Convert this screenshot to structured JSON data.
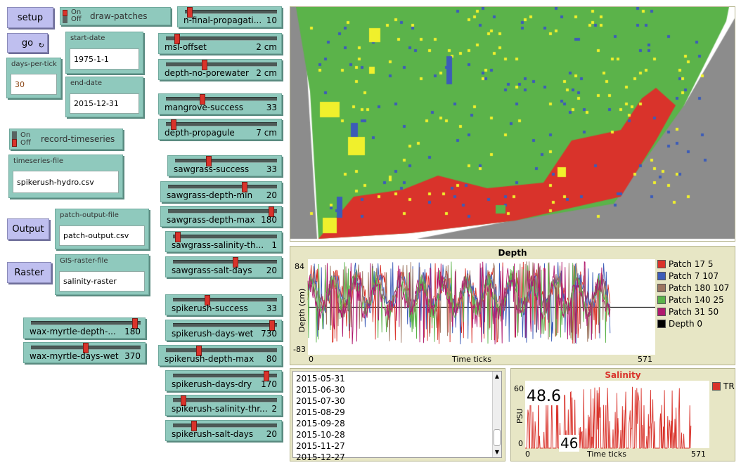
{
  "buttons": {
    "setup": "setup",
    "go": "go",
    "output": "Output",
    "raster": "Raster"
  },
  "icons": {
    "forever": "forever-icon"
  },
  "switches": {
    "on": "On",
    "off": "Off",
    "draw_patches": "draw-patches",
    "record_timeseries": "record-timeseries"
  },
  "inputs": {
    "start_date": {
      "label": "start-date",
      "value": "1975-1-1"
    },
    "days_per_tick": {
      "label": "days-per-tick",
      "value": "30"
    },
    "end_date": {
      "label": "end-date",
      "value": "2015-12-31"
    },
    "timeseries_file": {
      "label": "timeseries-file",
      "value": "spikerush-hydro.csv"
    },
    "patch_output_file": {
      "label": "patch-output-file",
      "value": "patch-output.csv"
    },
    "gis_raster_file": {
      "label": "GIS-raster-file",
      "value": "salinity-raster"
    }
  },
  "sliders": [
    {
      "label": "n-final-propagati...",
      "value": "10",
      "fraction": 0.05
    },
    {
      "label": "msl-offset",
      "value": "2 cm",
      "fraction": 0.1
    },
    {
      "label": "depth-no-porewater",
      "value": "2 cm",
      "fraction": 0.35
    },
    {
      "label": "mangrove-success",
      "value": "33",
      "fraction": 0.33
    },
    {
      "label": "depth-propagule",
      "value": "7 cm",
      "fraction": 0.07
    },
    {
      "label": "sawgrass-success",
      "value": "33",
      "fraction": 0.33
    },
    {
      "label": "sawgrass-depth-min",
      "value": "20",
      "fraction": 0.7
    },
    {
      "label": "sawgrass-depth-max",
      "value": "180",
      "fraction": 0.95
    },
    {
      "label": "sawgrass-salinity-th...",
      "value": "1",
      "fraction": 0.05
    },
    {
      "label": "sawgrass-salt-days",
      "value": "20",
      "fraction": 0.6
    },
    {
      "label": "spikerush-success",
      "value": "33",
      "fraction": 0.33
    },
    {
      "label": "spikerush-days-wet",
      "value": "730",
      "fraction": 0.95
    },
    {
      "label": "spikerush-depth-max",
      "value": "80",
      "fraction": 0.3
    },
    {
      "label": "spikerush-days-dry",
      "value": "170",
      "fraction": 0.9
    },
    {
      "label": "spikerush-salinity-thr...",
      "value": "2",
      "fraction": 0.1
    },
    {
      "label": "spikerush-salt-days",
      "value": "20",
      "fraction": 0.2
    },
    {
      "label": "wax-myrtle-depth-...",
      "value": "180",
      "fraction": 0.95
    },
    {
      "label": "wax-myrtle-days-wet",
      "value": "370",
      "fraction": 0.5
    }
  ],
  "depth_plot": {
    "title": "Depth",
    "ylabel": "Depth (cm)",
    "xlabel": "Time ticks",
    "ymax": "84",
    "ymin": "-83",
    "xmin": "0",
    "xmax": "571"
  },
  "salinity_plot": {
    "title": "Salinity",
    "ylabel": "PSU",
    "xlabel": "Time ticks",
    "ymax": "60",
    "ymin": "0",
    "xmin": "0",
    "xmax": "571",
    "readout_big": "48.6",
    "readout_small": "46",
    "legend": "TR"
  },
  "colors": {
    "patch_17_5": "#d9332b",
    "patch_7_107": "#3c5cb8",
    "patch_180_107": "#9c7560",
    "patch_140_25": "#5bb34a",
    "patch_31_50": "#b0196e",
    "depth_0": "#000000",
    "salinity_tr": "#d9332b"
  },
  "chart_data": [
    {
      "type": "line",
      "title": "Depth",
      "xlabel": "Time ticks",
      "ylabel": "Depth (cm)",
      "xlim": [
        0,
        571
      ],
      "ylim": [
        -83,
        84
      ],
      "series": [
        {
          "name": "Patch 17 5",
          "color": "#d9332b"
        },
        {
          "name": "Patch 7 107",
          "color": "#3c5cb8"
        },
        {
          "name": "Patch 180 107",
          "color": "#9c7560"
        },
        {
          "name": "Patch 140 25",
          "color": "#5bb34a"
        },
        {
          "name": "Patch 31 50",
          "color": "#b0196e"
        },
        {
          "name": "Depth 0",
          "color": "#000000"
        }
      ],
      "legend_position": "right"
    },
    {
      "type": "line",
      "title": "Salinity",
      "xlabel": "Time ticks",
      "ylabel": "PSU",
      "xlim": [
        0,
        571
      ],
      "ylim": [
        0,
        60
      ],
      "series": [
        {
          "name": "TR",
          "color": "#d9332b"
        }
      ],
      "legend_position": "top-right"
    }
  ],
  "output_log": [
    "2015-05-31",
    "2015-06-30",
    "2015-07-30",
    "2015-08-29",
    "2015-09-28",
    "2015-10-28",
    "2015-11-27",
    "2015-12-27"
  ]
}
